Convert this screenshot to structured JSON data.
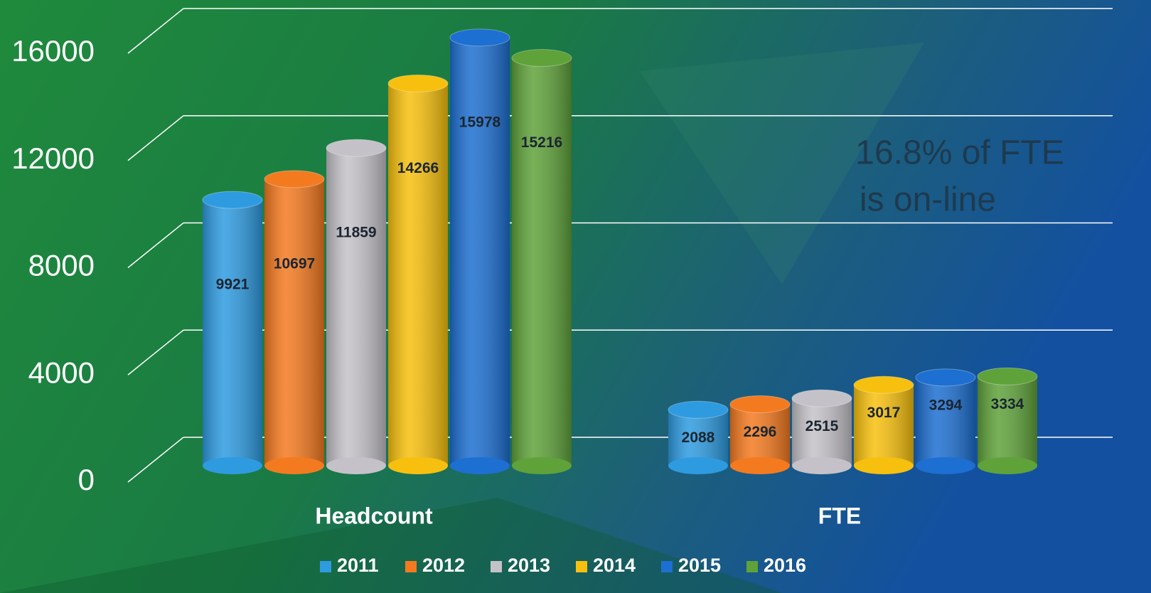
{
  "chart_data": {
    "type": "bar3d",
    "categories": [
      "Headcount",
      "FTE"
    ],
    "series": [
      {
        "name": "2011",
        "color": "#2e9be0",
        "values": [
          9921,
          2088
        ]
      },
      {
        "name": "2012",
        "color": "#f47a20",
        "values": [
          10697,
          2296
        ]
      },
      {
        "name": "2013",
        "color": "#c4c2c8",
        "values": [
          11859,
          2515
        ]
      },
      {
        "name": "2014",
        "color": "#f7c00e",
        "values": [
          14266,
          3017
        ]
      },
      {
        "name": "2015",
        "color": "#1d6fd1",
        "values": [
          15978,
          3294
        ]
      },
      {
        "name": "2016",
        "color": "#5fa23a",
        "values": [
          15216,
          3334
        ]
      }
    ],
    "ylim": [
      0,
      16000
    ],
    "yticks": [
      0,
      4000,
      8000,
      12000,
      16000
    ],
    "grid": true,
    "annotations": [
      "16.8% of FTE",
      "is on-line"
    ],
    "legend": "bottom"
  }
}
